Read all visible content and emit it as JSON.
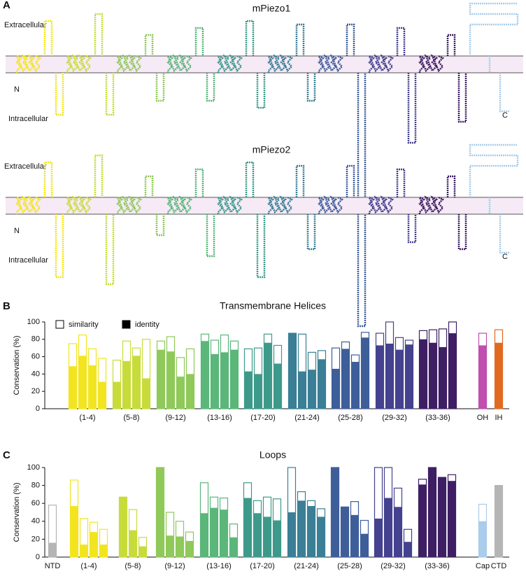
{
  "panel_a": {
    "letter": "A",
    "diagrams": [
      {
        "title": "mPiezo1",
        "extracellular": "Extracellular",
        "intracellular": "Intracellular",
        "n_terminus": "N",
        "c_terminus": "C"
      },
      {
        "title": "mPiezo2",
        "extracellular": "Extracellular",
        "intracellular": "Intracellular",
        "n_terminus": "N",
        "c_terminus": "C"
      }
    ]
  },
  "chart_data": [
    {
      "type": "bar",
      "letter": "B",
      "title": "Transmembrane Helices",
      "y_label": "Conservation (%)",
      "legend": [
        "similarity",
        "identity"
      ],
      "ylim": [
        0,
        100
      ],
      "yticks": [
        0,
        20,
        40,
        60,
        80,
        100
      ],
      "groups": [
        {
          "label": "(1-4)",
          "color": "#f2e51f",
          "similarity": [
            75,
            85,
            69,
            58
          ],
          "identity": [
            49,
            61,
            50,
            31
          ]
        },
        {
          "label": "(5-8)",
          "color": "#c7dc3b",
          "similarity": [
            56,
            78,
            70,
            80
          ],
          "identity": [
            31,
            55,
            61,
            35
          ]
        },
        {
          "label": "(9-12)",
          "color": "#8fc95a",
          "similarity": [
            78,
            83,
            59,
            69
          ],
          "identity": [
            68,
            66,
            37,
            40
          ]
        },
        {
          "label": "(13-16)",
          "color": "#5bb67a",
          "similarity": [
            86,
            79,
            85,
            78
          ],
          "identity": [
            78,
            63,
            65,
            68
          ]
        },
        {
          "label": "(17-20)",
          "color": "#3d9a8a",
          "similarity": [
            69,
            70,
            86,
            73
          ],
          "identity": [
            43,
            40,
            76,
            52
          ]
        },
        {
          "label": "(21-24)",
          "color": "#3a7f96",
          "similarity": [
            87,
            86,
            65,
            67
          ],
          "identity": [
            87,
            43,
            45,
            57
          ]
        },
        {
          "label": "(25-28)",
          "color": "#3e5e9a",
          "similarity": [
            70,
            77,
            62,
            88
          ],
          "identity": [
            46,
            69,
            54,
            82
          ]
        },
        {
          "label": "(29-32)",
          "color": "#44418f",
          "similarity": [
            87,
            100,
            82,
            79
          ],
          "identity": [
            73,
            75,
            68,
            74
          ]
        },
        {
          "label": "(33-36)",
          "color": "#3e1f63",
          "similarity": [
            90,
            91,
            92,
            100
          ],
          "identity": [
            80,
            76,
            71,
            87
          ]
        },
        {
          "label": "OH",
          "color": "#c04fb0",
          "similarity": [
            87
          ],
          "identity": [
            73
          ]
        },
        {
          "label": "IH",
          "color": "#e06a22",
          "similarity": [
            91
          ],
          "identity": [
            76
          ]
        }
      ]
    },
    {
      "type": "bar",
      "letter": "C",
      "title": "Loops",
      "y_label": "Conservation (%)",
      "ylim": [
        0,
        100
      ],
      "yticks": [
        0,
        20,
        40,
        60,
        80,
        100
      ],
      "groups": [
        {
          "label": "NTD",
          "color": "#b5b5b5",
          "similarity": [
            58
          ],
          "identity": [
            16
          ]
        },
        {
          "label": "(1-4)",
          "color": "#f2e51f",
          "similarity": [
            86,
            43,
            39,
            31
          ],
          "identity": [
            57,
            14,
            28,
            14
          ]
        },
        {
          "label": "(5-8)",
          "color": "#c7dc3b",
          "similarity": [
            67,
            53,
            22
          ],
          "identity": [
            67,
            30,
            12
          ]
        },
        {
          "label": "(9-12)",
          "color": "#8fc95a",
          "similarity": [
            100,
            50,
            40,
            28
          ],
          "identity": [
            100,
            24,
            23,
            18
          ]
        },
        {
          "label": "(13-16)",
          "color": "#5bb67a",
          "similarity": [
            83,
            67,
            66,
            37
          ],
          "identity": [
            49,
            55,
            53,
            22
          ]
        },
        {
          "label": "(17-20)",
          "color": "#3d9a8a",
          "similarity": [
            83,
            63,
            67,
            65
          ],
          "identity": [
            66,
            49,
            45,
            41
          ]
        },
        {
          "label": "(21-24)",
          "color": "#3a7f96",
          "similarity": [
            100,
            73,
            63,
            54
          ],
          "identity": [
            50,
            63,
            57,
            45
          ]
        },
        {
          "label": "(25-28)",
          "color": "#3e5e9a",
          "similarity": [
            100,
            56,
            62,
            41
          ],
          "identity": [
            100,
            56,
            47,
            26
          ]
        },
        {
          "label": "(29-32)",
          "color": "#44418f",
          "similarity": [
            100,
            100,
            77,
            31
          ],
          "identity": [
            43,
            66,
            56,
            17
          ]
        },
        {
          "label": "(33-36)",
          "color": "#3e1f63",
          "similarity": [
            87,
            100,
            89,
            92
          ],
          "identity": [
            81,
            100,
            89,
            85
          ]
        },
        {
          "label": "Cap",
          "color": "#a9cdea",
          "similarity": [
            59
          ],
          "identity": [
            40
          ]
        },
        {
          "label": "CTD",
          "color": "#b5b5b5",
          "similarity": [
            80
          ],
          "identity": [
            80
          ]
        }
      ]
    }
  ]
}
